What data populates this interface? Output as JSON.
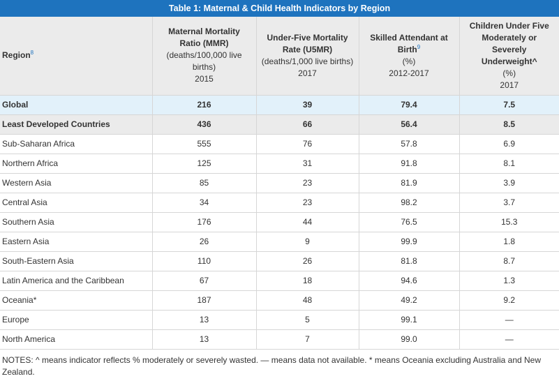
{
  "table": {
    "title": "Table 1: Maternal & Child Health Indicators by Region",
    "header": {
      "region": {
        "label": "Region",
        "note": "8"
      },
      "mmr": {
        "title": "Maternal Mortality Ratio (MMR)",
        "unit": "(deaths/100,000 live births)",
        "year": "2015"
      },
      "u5mr": {
        "title": "Under-Five Mortality Rate (U5MR)",
        "unit": "(deaths/1,000 live births)",
        "year": "2017"
      },
      "sba": {
        "title": "Skilled Attendant at Birth",
        "note": "9",
        "unit": "(%)",
        "year": "2012-2017"
      },
      "underweight": {
        "title": "Children Under Five Moderately or Severely Underweight^",
        "unit": "(%)",
        "year": "2017"
      }
    },
    "rows": [
      {
        "region": "Global",
        "mmr": "216",
        "u5mr": "39",
        "sba": "79.4",
        "underweight": "7.5"
      },
      {
        "region": "Least Developed Countries",
        "mmr": "436",
        "u5mr": "66",
        "sba": "56.4",
        "underweight": "8.5"
      },
      {
        "region": "Sub-Saharan Africa",
        "mmr": "555",
        "u5mr": "76",
        "sba": "57.8",
        "underweight": "6.9"
      },
      {
        "region": "Northern Africa",
        "mmr": "125",
        "u5mr": "31",
        "sba": "91.8",
        "underweight": "8.1"
      },
      {
        "region": "Western Asia",
        "mmr": "85",
        "u5mr": "23",
        "sba": "81.9",
        "underweight": "3.9"
      },
      {
        "region": "Central Asia",
        "mmr": "34",
        "u5mr": "23",
        "sba": "98.2",
        "underweight": "3.7"
      },
      {
        "region": "Southern Asia",
        "mmr": "176",
        "u5mr": "44",
        "sba": "76.5",
        "underweight": "15.3"
      },
      {
        "region": "Eastern Asia",
        "mmr": "26",
        "u5mr": "9",
        "sba": "99.9",
        "underweight": "1.8"
      },
      {
        "region": "South-Eastern Asia",
        "mmr": "110",
        "u5mr": "26",
        "sba": "81.8",
        "underweight": "8.7"
      },
      {
        "region": "Latin America and the Caribbean",
        "mmr": "67",
        "u5mr": "18",
        "sba": "94.6",
        "underweight": "1.3"
      },
      {
        "region": "Oceania*",
        "mmr": "187",
        "u5mr": "48",
        "sba": "49.2",
        "underweight": "9.2"
      },
      {
        "region": "Europe",
        "mmr": "13",
        "u5mr": "5",
        "sba": "99.1",
        "underweight": "—"
      },
      {
        "region": "North America",
        "mmr": "13",
        "u5mr": "7",
        "sba": "99.0",
        "underweight": "—"
      }
    ],
    "notes": "NOTES: ^ means indicator reflects % moderately or severely wasted.  — means data not available. * means Oceania excluding Australia and New Zealand."
  },
  "colors": {
    "title_bg": "#1e73be",
    "header_bg": "#ebebeb",
    "global_row_bg": "#e2f1fa",
    "ldc_row_bg": "#ebebeb",
    "note_link": "#1e73be"
  }
}
